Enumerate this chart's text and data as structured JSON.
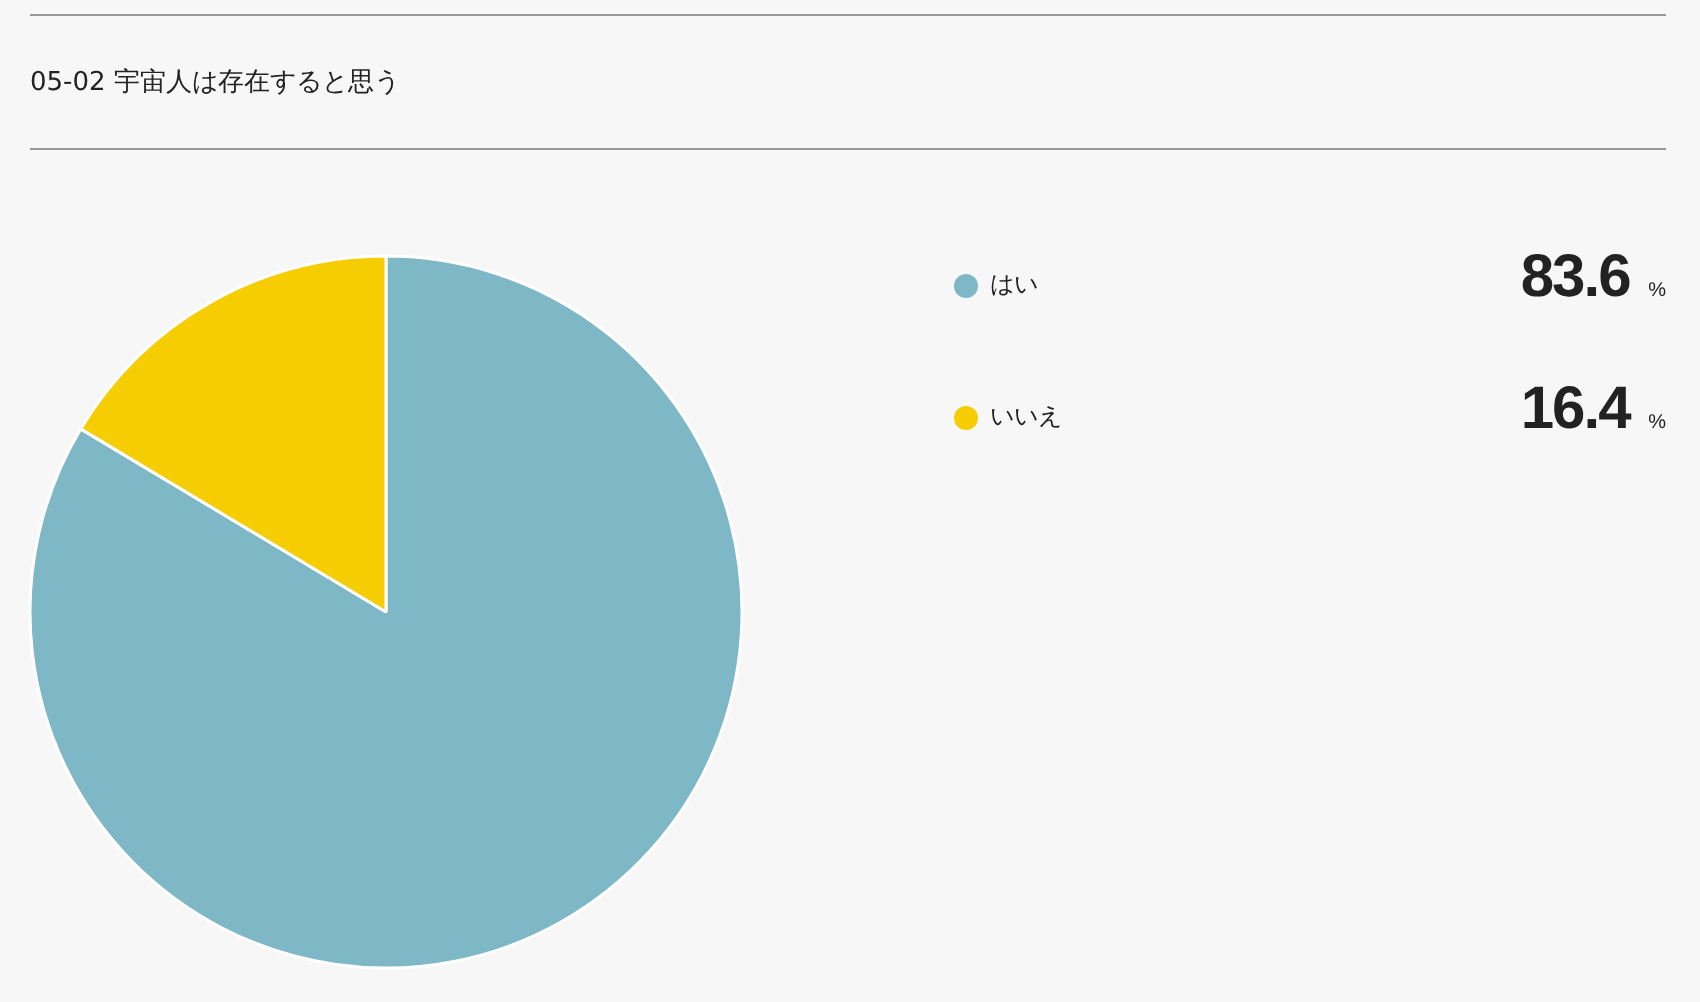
{
  "chart_data": {
    "type": "pie",
    "title": "05-02 宇宙人は存在すると思う",
    "categories": [
      "はい",
      "いいえ"
    ],
    "values": [
      83.6,
      16.4
    ],
    "colors": [
      "#7eb8c6",
      "#f6cd00"
    ],
    "value_labels": [
      "83.6 %",
      "16.4 %"
    ],
    "legend": "right"
  }
}
